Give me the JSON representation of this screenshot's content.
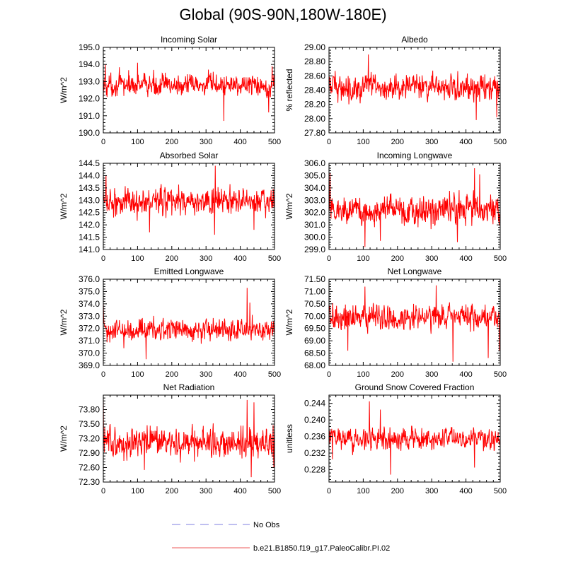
{
  "title": "Global (90S-90N,180W-180E)",
  "legend": {
    "entries": [
      {
        "label": "No Obs",
        "color": "#9999e6",
        "dashed": true
      },
      {
        "label": "b.e21.B1850.f19_g17.PaleoCalibr.PI.02",
        "color": "#f07b7b",
        "dashed": false
      }
    ]
  },
  "chart_data": [
    {
      "type": "line",
      "title": "Incoming Solar",
      "ylabel": "W/m^2",
      "xlim": [
        0,
        500
      ],
      "ylim": [
        190.0,
        195.0
      ],
      "xticks": [
        "0",
        "100",
        "200",
        "300",
        "400",
        "500"
      ],
      "yticks": [
        "190.0",
        "191.0",
        "192.0",
        "193.0",
        "194.0",
        "195.0"
      ],
      "series": [
        {
          "name": "b.e21.B1850.f19_g17.PaleoCalibr.PI.02",
          "color": "#ff0000",
          "mean": 192.8,
          "amplitude": 0.45,
          "events": [
            {
              "x": 0,
              "y": 191.8
            },
            {
              "x": 6,
              "y": 194.0
            },
            {
              "x": 100,
              "y": 194.1
            },
            {
              "x": 352,
              "y": 190.7
            },
            {
              "x": 483,
              "y": 191.2
            },
            {
              "x": 493,
              "y": 193.9
            }
          ]
        }
      ]
    },
    {
      "type": "line",
      "title": "Albedo",
      "ylabel": "% reflected",
      "xlim": [
        0,
        500
      ],
      "ylim": [
        27.8,
        29.0
      ],
      "xticks": [
        "0",
        "100",
        "200",
        "300",
        "400",
        "500"
      ],
      "yticks": [
        "27.80",
        "28.00",
        "28.20",
        "28.40",
        "28.60",
        "28.80",
        "29.00"
      ],
      "series": [
        {
          "name": "b.e21.B1850.f19_g17.PaleoCalibr.PI.02",
          "color": "#ff0000",
          "mean": 28.44,
          "amplitude": 0.12,
          "events": [
            {
              "x": 115,
              "y": 28.9
            },
            {
              "x": 18,
              "y": 28.67
            },
            {
              "x": 430,
              "y": 27.98
            },
            {
              "x": 490,
              "y": 28.02
            },
            {
              "x": 455,
              "y": 28.62
            }
          ]
        }
      ]
    },
    {
      "type": "line",
      "title": "Absorbed Solar",
      "ylabel": "W/m^2",
      "xlim": [
        0,
        500
      ],
      "ylim": [
        141.0,
        144.5
      ],
      "xticks": [
        "0",
        "100",
        "200",
        "300",
        "400",
        "500"
      ],
      "yticks": [
        "141.0",
        "141.5",
        "142.0",
        "142.5",
        "143.0",
        "143.5",
        "144.0",
        "144.5"
      ],
      "series": [
        {
          "name": "b.e21.B1850.f19_g17.PaleoCalibr.PI.02",
          "color": "#ff0000",
          "mean": 142.95,
          "amplitude": 0.38,
          "events": [
            {
              "x": 327,
              "y": 144.4
            },
            {
              "x": 8,
              "y": 144.0
            },
            {
              "x": 325,
              "y": 141.6
            },
            {
              "x": 135,
              "y": 141.7
            },
            {
              "x": 440,
              "y": 141.8
            }
          ]
        }
      ]
    },
    {
      "type": "line",
      "title": "Incoming Longwave",
      "ylabel": "W/m^2",
      "xlim": [
        0,
        500
      ],
      "ylim": [
        299.0,
        306.0
      ],
      "xticks": [
        "0",
        "100",
        "200",
        "300",
        "400",
        "500"
      ],
      "yticks": [
        "299.0",
        "300.0",
        "301.0",
        "302.0",
        "303.0",
        "304.0",
        "305.0",
        "306.0"
      ],
      "series": [
        {
          "name": "b.e21.B1850.f19_g17.PaleoCalibr.PI.02",
          "color": "#ff0000",
          "mean": 302.2,
          "amplitude": 0.8,
          "events": [
            {
              "x": 3,
              "y": 305.2
            },
            {
              "x": 105,
              "y": 299.2
            },
            {
              "x": 425,
              "y": 305.6
            },
            {
              "x": 440,
              "y": 305.1
            },
            {
              "x": 150,
              "y": 299.7
            },
            {
              "x": 375,
              "y": 299.6
            }
          ]
        }
      ]
    },
    {
      "type": "line",
      "title": "Emitted Longwave",
      "ylabel": "W/m^2",
      "xlim": [
        0,
        500
      ],
      "ylim": [
        369.0,
        376.0
      ],
      "xticks": [
        "0",
        "100",
        "200",
        "300",
        "400",
        "500"
      ],
      "yticks": [
        "369.0",
        "370.0",
        "371.0",
        "372.0",
        "373.0",
        "374.0",
        "375.0",
        "376.0"
      ],
      "series": [
        {
          "name": "b.e21.B1850.f19_g17.PaleoCalibr.PI.02",
          "color": "#ff0000",
          "mean": 371.9,
          "amplitude": 0.6,
          "events": [
            {
              "x": 0,
              "y": 374.1
            },
            {
              "x": 125,
              "y": 369.5
            },
            {
              "x": 420,
              "y": 375.3
            },
            {
              "x": 428,
              "y": 374.1
            },
            {
              "x": 60,
              "y": 370.4
            }
          ]
        }
      ]
    },
    {
      "type": "line",
      "title": "Net Longwave",
      "ylabel": "W/m^2",
      "xlim": [
        0,
        500
      ],
      "ylim": [
        68.0,
        71.5
      ],
      "xticks": [
        "0",
        "100",
        "200",
        "300",
        "400",
        "500"
      ],
      "yticks": [
        "68.00",
        "68.50",
        "69.00",
        "69.50",
        "70.00",
        "70.50",
        "71.00",
        "71.50"
      ],
      "series": [
        {
          "name": "b.e21.B1850.f19_g17.PaleoCalibr.PI.02",
          "color": "#ff0000",
          "mean": 69.95,
          "amplitude": 0.35,
          "events": [
            {
              "x": 313,
              "y": 71.25
            },
            {
              "x": 105,
              "y": 71.2
            },
            {
              "x": 55,
              "y": 68.6
            },
            {
              "x": 362,
              "y": 68.15
            },
            {
              "x": 465,
              "y": 68.3
            },
            {
              "x": 498,
              "y": 68.6
            }
          ]
        }
      ]
    },
    {
      "type": "line",
      "title": "Net Radiation",
      "ylabel": "W/m^2",
      "xlim": [
        0,
        500
      ],
      "ylim": [
        72.3,
        74.1
      ],
      "xticks": [
        "0",
        "100",
        "200",
        "300",
        "400",
        "500"
      ],
      "yticks": [
        "72.30",
        "72.60",
        "72.90",
        "73.20",
        "73.50",
        "73.80"
      ],
      "series": [
        {
          "name": "b.e21.B1850.f19_g17.PaleoCalibr.PI.02",
          "color": "#ff0000",
          "mean": 73.12,
          "amplitude": 0.22,
          "events": [
            {
              "x": 0,
              "y": 74.05
            },
            {
              "x": 420,
              "y": 74.0
            },
            {
              "x": 440,
              "y": 73.95
            },
            {
              "x": 432,
              "y": 72.4
            },
            {
              "x": 498,
              "y": 72.6
            },
            {
              "x": 120,
              "y": 72.55
            }
          ]
        }
      ]
    },
    {
      "type": "line",
      "title": "Ground Snow Covered Fraction",
      "ylabel": "unitless",
      "xlim": [
        0,
        500
      ],
      "ylim": [
        0.225,
        0.246
      ],
      "xticks": [
        "0",
        "100",
        "200",
        "300",
        "400",
        "500"
      ],
      "yticks": [
        "0.228",
        "0.232",
        "0.236",
        "0.240",
        "0.244"
      ],
      "series": [
        {
          "name": "b.e21.B1850.f19_g17.PaleoCalibr.PI.02",
          "color": "#ff0000",
          "mean": 0.2355,
          "amplitude": 0.0017,
          "events": [
            {
              "x": 118,
              "y": 0.2445
            },
            {
              "x": 150,
              "y": 0.2425
            },
            {
              "x": 180,
              "y": 0.2268
            },
            {
              "x": 425,
              "y": 0.2285
            },
            {
              "x": 10,
              "y": 0.2305
            }
          ]
        }
      ]
    }
  ]
}
